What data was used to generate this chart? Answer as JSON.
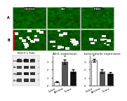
{
  "panel_titles_top": [
    "Control",
    "Akt",
    "P-Akt"
  ],
  "wb_labels": [
    "beta-Tubulin",
    "Akt",
    "P-Akt",
    "Actin"
  ],
  "wb_title": "ROC1's Title",
  "bar1_title": "Akt1 expression",
  "bar1_categories": [
    "Control",
    "Akt/clone",
    "P-clone"
  ],
  "bar1_values": [
    0.5,
    3.0,
    1.8
  ],
  "bar1_colors": [
    "#ffffff",
    "#555555",
    "#111111"
  ],
  "bar1_errors": [
    0.08,
    0.28,
    0.22
  ],
  "bar1_ylim": [
    0,
    3.8
  ],
  "bar1_yticks": [
    0,
    1,
    2,
    3
  ],
  "bar2_title": "beta-tubulin expression",
  "bar2_categories": [
    "Control",
    "Akt/clone",
    "P-clone"
  ],
  "bar2_values": [
    3.2,
    1.8,
    1.5
  ],
  "bar2_colors": [
    "#ffffff",
    "#555555",
    "#111111"
  ],
  "bar2_errors": [
    0.18,
    0.22,
    0.18
  ],
  "bar2_ylim": [
    0,
    3.8
  ],
  "bar2_yticks": [
    0,
    1,
    2,
    3
  ],
  "bg_color": "#ffffff",
  "separator_color": "#cccccc",
  "micro_bg": "#0a0a0a"
}
